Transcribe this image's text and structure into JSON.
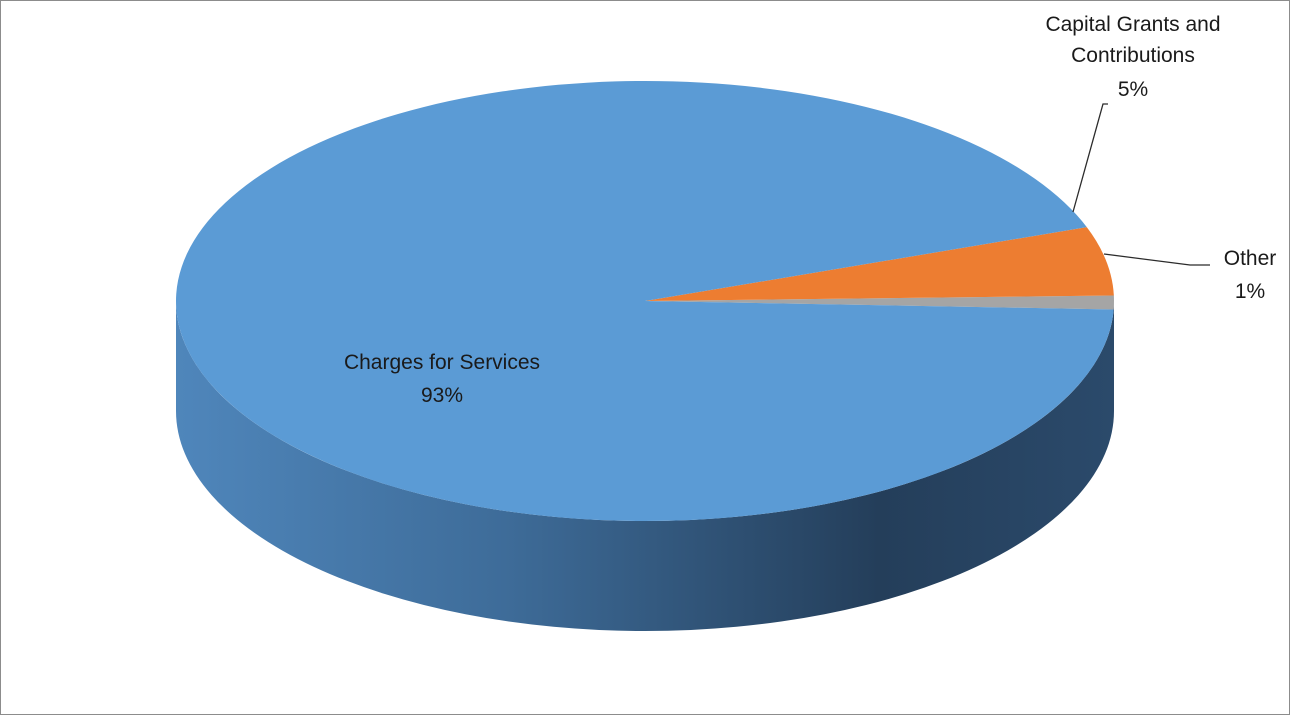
{
  "chart_data": {
    "type": "pie",
    "style": "3d",
    "series": [
      {
        "slices": [
          {
            "name": "Charges for Services",
            "value": 93,
            "label": "93%",
            "color": "#5b9bd5"
          },
          {
            "name": "Capital Grants and Contributions",
            "value": 5,
            "label": "5%",
            "color": "#ed7d31"
          },
          {
            "name": "Other",
            "value": 1,
            "label": "1%",
            "color": "#a5a5a5"
          }
        ]
      }
    ],
    "labels": {
      "charges": {
        "name": "Charges for Services",
        "pct": "93%"
      },
      "capital": {
        "name_line1": "Capital Grants and",
        "name_line2": "Contributions",
        "pct": "5%"
      },
      "other": {
        "name": "Other",
        "pct": "1%"
      }
    },
    "legend": "none",
    "title": ""
  }
}
